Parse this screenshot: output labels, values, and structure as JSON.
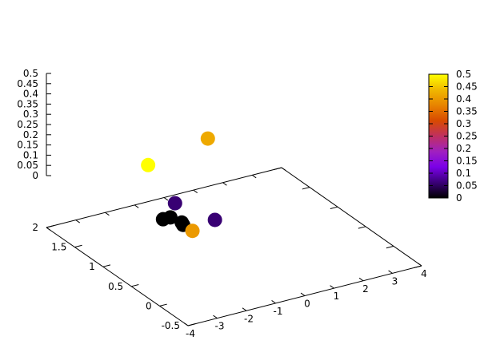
{
  "chart_data": {
    "type": "scatter",
    "title": "",
    "xlabel": "",
    "ylabel": "",
    "zlabel": "",
    "grid": false,
    "legend": "none",
    "xlim": [
      -4,
      4
    ],
    "ylim": [
      -0.5,
      2
    ],
    "zlim": [
      0,
      0.5
    ],
    "x_ticks": [
      "-4",
      "-3",
      "-2",
      "-1",
      "0",
      "1",
      "2",
      "3",
      "4"
    ],
    "y_ticks": [
      "-0.5",
      "0",
      "0.5",
      "1",
      "1.5",
      "2"
    ],
    "z_ticks": [
      "0",
      "0.05",
      "0.1",
      "0.15",
      "0.2",
      "0.25",
      "0.3",
      "0.35",
      "0.4",
      "0.45",
      "0.5"
    ],
    "colorbar": {
      "range": [
        0,
        0.5
      ],
      "ticks": [
        "0",
        "0.05",
        "0.1",
        "0.15",
        "0.2",
        "0.25",
        "0.3",
        "0.35",
        "0.4",
        "0.45",
        "0.5"
      ],
      "palette": [
        "#000000",
        "#3a0078",
        "#7a00e8",
        "#a020c0",
        "#c03060",
        "#d84a00",
        "#e88400",
        "#f0b800",
        "#ffff00"
      ]
    },
    "points": [
      {
        "x": -1.5,
        "y": 1.5,
        "z": 0.5
      },
      {
        "x": -2.3,
        "y": 0.3,
        "z": 0.4
      },
      {
        "x": 1.3,
        "y": 1.9,
        "z": 0.42
      },
      {
        "x": -0.2,
        "y": 1.7,
        "z": 0.06
      },
      {
        "x": 0.2,
        "y": 1.2,
        "z": 0.06
      },
      {
        "x": -0.8,
        "y": 1.6,
        "z": 0.0
      },
      {
        "x": -0.5,
        "y": 1.4,
        "z": 0.0
      },
      {
        "x": -0.55,
        "y": 1.6,
        "z": 0.0
      },
      {
        "x": -0.45,
        "y": 1.45,
        "z": 0.0
      }
    ]
  }
}
